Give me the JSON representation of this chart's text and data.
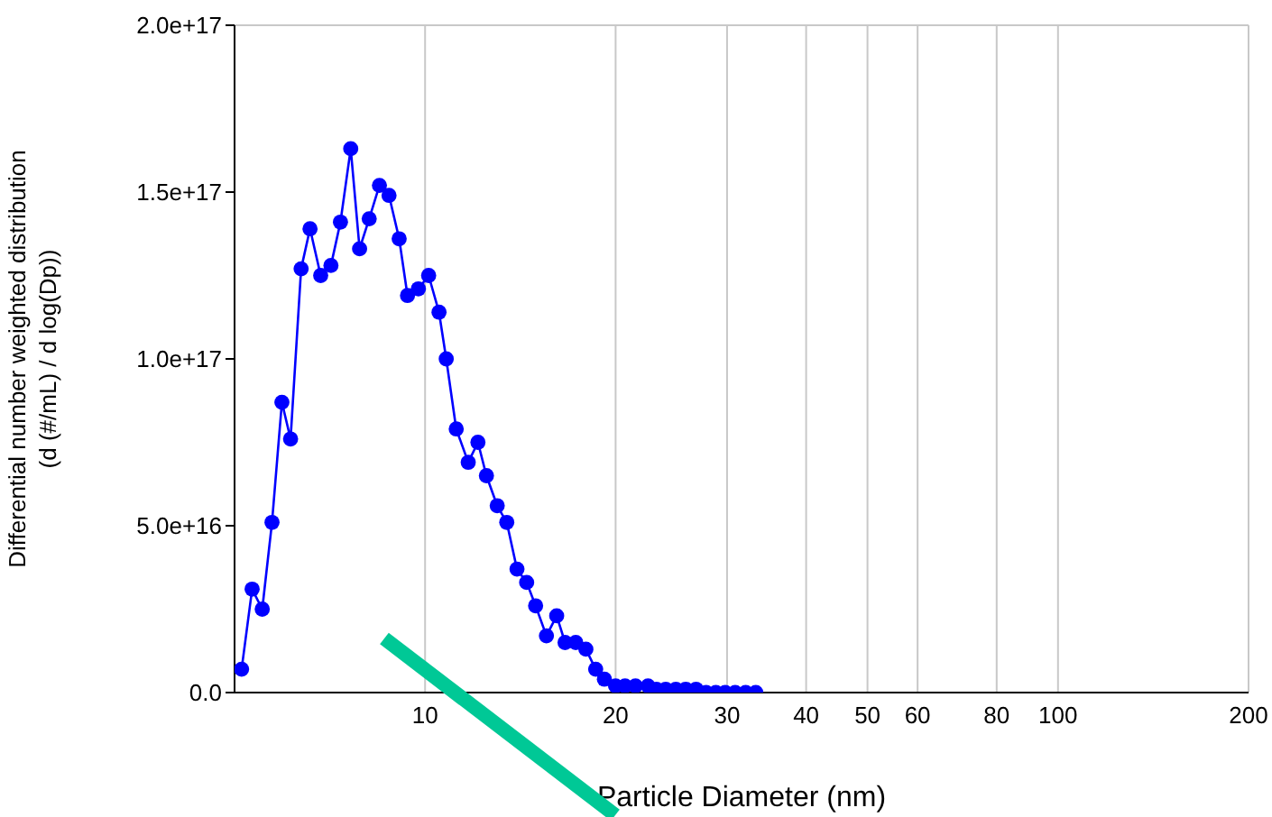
{
  "chart_data": {
    "type": "line",
    "xlabel": "Particle Diameter (nm)",
    "ylabel": "Differential number weighted distribution\n(d (#/mL) / d log(Dp))",
    "log": "x",
    "grid": true,
    "marker": "circle",
    "line_style": "solid",
    "xlim": [
      5,
      200
    ],
    "xticks": [
      10,
      20,
      30,
      40,
      50,
      60,
      80,
      100,
      200
    ],
    "ylim": [
      0,
      2e+17
    ],
    "yticks": [
      {
        "value": 0,
        "label": "0.0"
      },
      {
        "value": 5e+16,
        "label": "5.0e+16"
      },
      {
        "value": 1e+17,
        "label": "1.0e+17"
      },
      {
        "value": 1.5e+17,
        "label": "1.5e+17"
      },
      {
        "value": 2e+17,
        "label": "2.0e+17"
      }
    ],
    "x": [
      5.13,
      5.33,
      5.53,
      5.73,
      5.94,
      6.13,
      6.37,
      6.58,
      6.84,
      7.1,
      7.35,
      7.63,
      7.88,
      8.16,
      8.47,
      8.77,
      9.1,
      9.38,
      9.76,
      10.13,
      10.52,
      10.8,
      11.2,
      11.7,
      12.12,
      12.5,
      13.0,
      13.46,
      13.97,
      14.47,
      14.95,
      15.55,
      16.14,
      16.64,
      17.3,
      17.95,
      18.6,
      19.2,
      20.0,
      20.7,
      21.5,
      22.5,
      23.2,
      24.0,
      24.9,
      25.8,
      26.8,
      27.8,
      28.8,
      29.8,
      30.9,
      32.1,
      33.3
    ],
    "series": [
      {
        "color": "#0000ff",
        "values": [
          7000000000000000.0,
          3.1e+16,
          2.5e+16,
          5.1e+16,
          8.7e+16,
          7.6e+16,
          1.27e+17,
          1.39e+17,
          1.25e+17,
          1.28e+17,
          1.41e+17,
          1.63e+17,
          1.33e+17,
          1.42e+17,
          1.52e+17,
          1.49e+17,
          1.36e+17,
          1.19e+17,
          1.21e+17,
          1.25e+17,
          1.14e+17,
          1e+17,
          7.9e+16,
          6.9e+16,
          7.5e+16,
          6.5e+16,
          5.6e+16,
          5.1e+16,
          3.7e+16,
          3.3e+16,
          2.6e+16,
          1.7e+16,
          2.3e+16,
          1.5e+16,
          1.5e+16,
          1.3e+16,
          7000000000000000.0,
          4000000000000000.0,
          2000000000000000.0,
          2000000000000000.0,
          2000000000000000.0,
          2000000000000000.0,
          1000000000000000.0,
          1000000000000000.0,
          1000000000000000.0,
          1000000000000000.0,
          1000000000000000.0,
          0,
          0,
          0,
          0,
          0,
          0
        ]
      }
    ]
  }
}
